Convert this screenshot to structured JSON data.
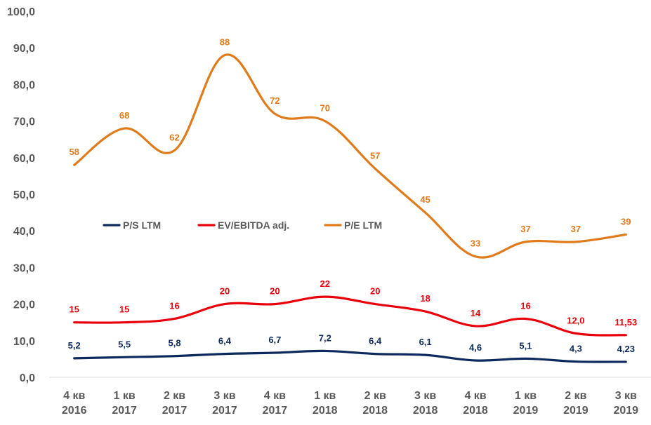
{
  "chart_data": {
    "type": "line",
    "title": "",
    "xlabel": "",
    "ylabel": "",
    "ylim": [
      0,
      100
    ],
    "yticks": [
      "0,0",
      "10,0",
      "20,0",
      "30,0",
      "40,0",
      "50,0",
      "60,0",
      "70,0",
      "80,0",
      "90,0",
      "100,0"
    ],
    "categories": [
      [
        "4 кв",
        "2016"
      ],
      [
        "1 кв",
        "2017"
      ],
      [
        "2 кв",
        "2017"
      ],
      [
        "3 кв",
        "2017"
      ],
      [
        "4 кв",
        "2017"
      ],
      [
        "1 кв",
        "2018"
      ],
      [
        "2 кв",
        "2018"
      ],
      [
        "3 кв",
        "2018"
      ],
      [
        "4 кв",
        "2018"
      ],
      [
        "1 кв",
        "2019"
      ],
      [
        "2 кв",
        "2019"
      ],
      [
        "3 кв",
        "2019"
      ]
    ],
    "legend_position": "middle-left",
    "grid": false,
    "series": [
      {
        "name": "P/S LTM",
        "color": "#0d2a5e",
        "values": [
          5.2,
          5.5,
          5.8,
          6.4,
          6.7,
          7.2,
          6.4,
          6.1,
          4.6,
          5.1,
          4.3,
          4.23
        ],
        "labels": [
          "5,2",
          "5,5",
          "5,8",
          "6,4",
          "6,7",
          "7,2",
          "6,4",
          "6,1",
          "4,6",
          "5,1",
          "4,3",
          "4,23"
        ]
      },
      {
        "name": "EV/EBITDA adj.",
        "color": "#e8000b",
        "values": [
          15,
          15,
          16,
          20,
          20,
          22,
          20,
          18,
          14,
          16,
          12.0,
          11.53
        ],
        "labels": [
          "15",
          "15",
          "16",
          "20",
          "20",
          "22",
          "20",
          "18",
          "14",
          "16",
          "12,0",
          "11,53"
        ]
      },
      {
        "name": "P/E LTM",
        "color": "#e07b1c",
        "values": [
          58,
          68,
          62,
          88,
          72,
          70,
          57,
          45,
          33,
          37,
          37,
          39
        ],
        "labels": [
          "58",
          "68",
          "62",
          "88",
          "72",
          "70",
          "57",
          "45",
          "33",
          "37",
          "37",
          "39"
        ]
      }
    ]
  }
}
